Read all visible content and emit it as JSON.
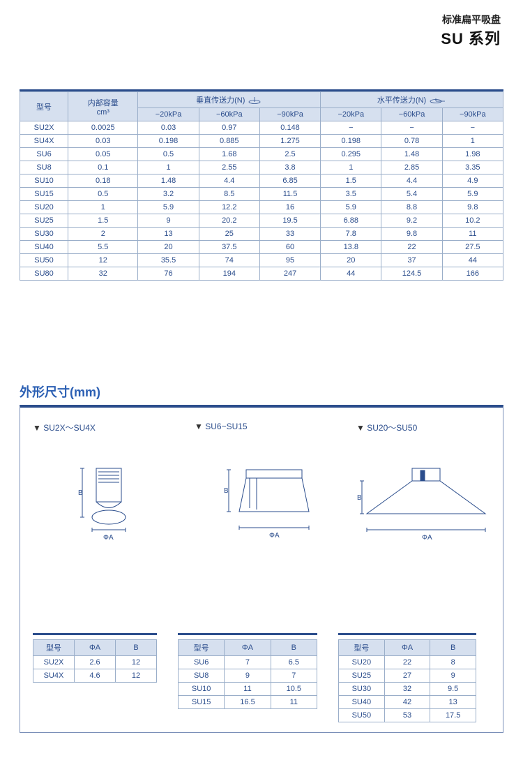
{
  "header": {
    "subtitle": "标准扁平吸盘",
    "title": "SU 系列"
  },
  "mainTable": {
    "colors": {
      "border": "#9aaec9",
      "headerBg": "#d6e0ef",
      "text": "#2b4d8c",
      "topBorder": "#2b4d8c"
    },
    "headers": {
      "model": "型号",
      "volume": "内部容量",
      "volumeUnit": "cm³",
      "vertical": "垂直传送力(N)",
      "horizontal": "水平传送力(N)",
      "p20": "−20kPa",
      "p60": "−60kPa",
      "p90": "−90kPa"
    },
    "rows": [
      {
        "m": "SU2X",
        "v": "0.0025",
        "a": "0.03",
        "b": "0.97",
        "c": "0.148",
        "d": "−",
        "e": "−",
        "f": "−"
      },
      {
        "m": "SU4X",
        "v": "0.03",
        "a": "0.198",
        "b": "0.885",
        "c": "1.275",
        "d": "0.198",
        "e": "0.78",
        "f": "1"
      },
      {
        "m": "SU6",
        "v": "0.05",
        "a": "0.5",
        "b": "1.68",
        "c": "2.5",
        "d": "0.295",
        "e": "1.48",
        "f": "1.98"
      },
      {
        "m": "SU8",
        "v": "0.1",
        "a": "1",
        "b": "2.55",
        "c": "3.8",
        "d": "1",
        "e": "2.85",
        "f": "3.35"
      },
      {
        "m": "SU10",
        "v": "0.18",
        "a": "1.48",
        "b": "4.4",
        "c": "6.85",
        "d": "1.5",
        "e": "4.4",
        "f": "4.9"
      },
      {
        "m": "SU15",
        "v": "0.5",
        "a": "3.2",
        "b": "8.5",
        "c": "11.5",
        "d": "3.5",
        "e": "5.4",
        "f": "5.9"
      },
      {
        "m": "SU20",
        "v": "1",
        "a": "5.9",
        "b": "12.2",
        "c": "16",
        "d": "5.9",
        "e": "8.8",
        "f": "9.8"
      },
      {
        "m": "SU25",
        "v": "1.5",
        "a": "9",
        "b": "20.2",
        "c": "19.5",
        "d": "6.88",
        "e": "9.2",
        "f": "10.2"
      },
      {
        "m": "SU30",
        "v": "2",
        "a": "13",
        "b": "25",
        "c": "33",
        "d": "7.8",
        "e": "9.8",
        "f": "11"
      },
      {
        "m": "SU40",
        "v": "5.5",
        "a": "20",
        "b": "37.5",
        "c": "60",
        "d": "13.8",
        "e": "22",
        "f": "27.5"
      },
      {
        "m": "SU50",
        "v": "12",
        "a": "35.5",
        "b": "74",
        "c": "95",
        "d": "20",
        "e": "37",
        "f": "44"
      },
      {
        "m": "SU80",
        "v": "32",
        "a": "76",
        "b": "194",
        "c": "247",
        "d": "44",
        "e": "124.5",
        "f": "166"
      }
    ]
  },
  "dimensions": {
    "sectionTitle": "外形尺寸(mm)",
    "groups": [
      {
        "label": "SU2X～SU4X"
      },
      {
        "label": "SU6~SU15"
      },
      {
        "label": "SU20～SU50"
      }
    ],
    "diaLabel": "ΦA",
    "heightLabel": "B",
    "smallHeaders": {
      "model": "型号",
      "phiA": "ΦA",
      "b": "B"
    },
    "tables": [
      [
        {
          "m": "SU2X",
          "a": "2.6",
          "b": "12"
        },
        {
          "m": "SU4X",
          "a": "4.6",
          "b": "12"
        }
      ],
      [
        {
          "m": "SU6",
          "a": "7",
          "b": "6.5"
        },
        {
          "m": "SU8",
          "a": "9",
          "b": "7"
        },
        {
          "m": "SU10",
          "a": "11",
          "b": "10.5"
        },
        {
          "m": "SU15",
          "a": "16.5",
          "b": "11"
        }
      ],
      [
        {
          "m": "SU20",
          "a": "22",
          "b": "8"
        },
        {
          "m": "SU25",
          "a": "27",
          "b": "9"
        },
        {
          "m": "SU30",
          "a": "32",
          "b": "9.5"
        },
        {
          "m": "SU40",
          "a": "42",
          "b": "13"
        },
        {
          "m": "SU50",
          "a": "53",
          "b": "17.5"
        }
      ]
    ]
  }
}
